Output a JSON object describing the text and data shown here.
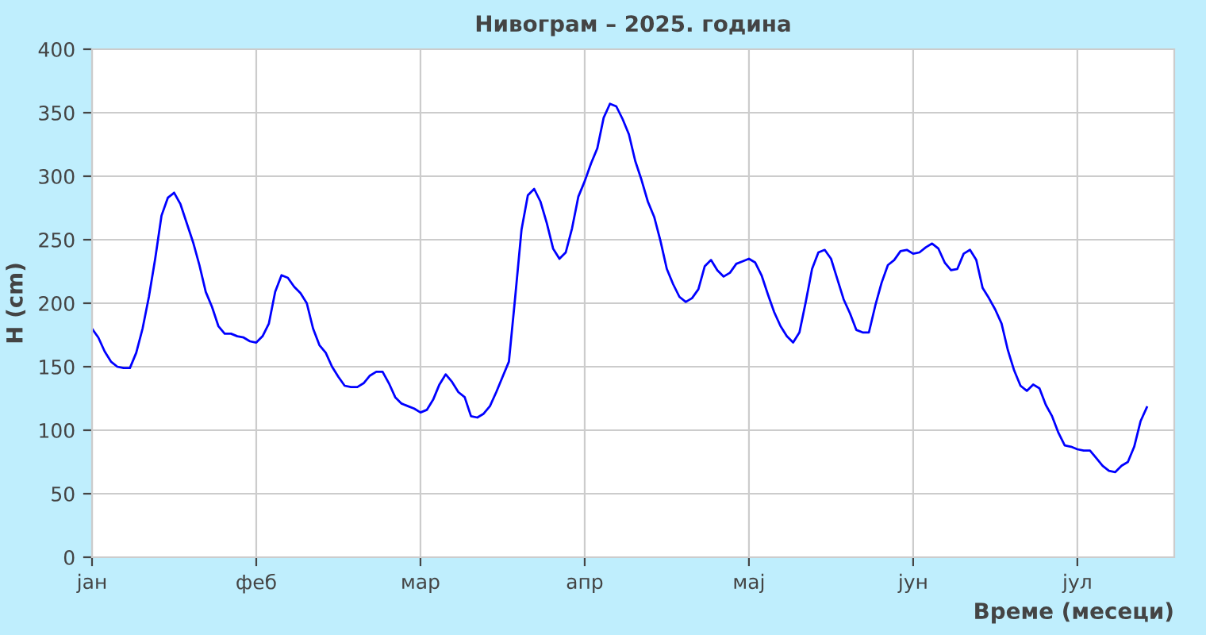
{
  "chart_data": {
    "type": "line",
    "title": "Нивограм – 2025. година",
    "xlabel": "Време (месеци)",
    "ylabel": "H (cm)",
    "categories": [
      "јан",
      null,
      null,
      null,
      null,
      null,
      null,
      null,
      null,
      null,
      null,
      null,
      null,
      null,
      null,
      null,
      null,
      null,
      null,
      null,
      null,
      null,
      null,
      null,
      null,
      null,
      "феб",
      null,
      null,
      null,
      null,
      null,
      null,
      null,
      null,
      null,
      null,
      null,
      null,
      null,
      null,
      null,
      null,
      null,
      null,
      null,
      null,
      null,
      null,
      null,
      null,
      null,
      "мар",
      null,
      null,
      null,
      null,
      null,
      null,
      null,
      null,
      null,
      null,
      null,
      null,
      null,
      null,
      null,
      null,
      null,
      null,
      null,
      null,
      null,
      null,
      null,
      null,
      null,
      "апр",
      null,
      null,
      null,
      null,
      null,
      null,
      null,
      null,
      null,
      null,
      null,
      null,
      null,
      null,
      null,
      null,
      null,
      null,
      null,
      null,
      null,
      null,
      null,
      null,
      null,
      "мај",
      null,
      null,
      null,
      null,
      null,
      null,
      null,
      null,
      null,
      null,
      null,
      null,
      null,
      null,
      null,
      null,
      null,
      null,
      null,
      null,
      null,
      null,
      null,
      null,
      null,
      "јун",
      null,
      null,
      null,
      null,
      null,
      null,
      null,
      null,
      null,
      null,
      null,
      null,
      null,
      null,
      null,
      null,
      null,
      null,
      null,
      null,
      null,
      null,
      null,
      null,
      null,
      "јул",
      null,
      null,
      null,
      null,
      null,
      null,
      null,
      null,
      null,
      null,
      null
    ],
    "series": [
      {
        "color": "#0000ff",
        "values": [
          180,
          173,
          162,
          154,
          150,
          149,
          149,
          161,
          180,
          205,
          235,
          269,
          283,
          287,
          278,
          263,
          248,
          230,
          209,
          197,
          182,
          176,
          176,
          174,
          173,
          170,
          169,
          174,
          184,
          209,
          222,
          220,
          213,
          208,
          200,
          180,
          167,
          161,
          150,
          142,
          135,
          134,
          134,
          137,
          143,
          146,
          146,
          137,
          126,
          121,
          119,
          117,
          114,
          116,
          124,
          136,
          144,
          138,
          130,
          126,
          111,
          110,
          113,
          119,
          130,
          142,
          154,
          205,
          258,
          285,
          290,
          280,
          263,
          243,
          235,
          240,
          259,
          284,
          296,
          310,
          322,
          346,
          357,
          355,
          345,
          333,
          312,
          297,
          280,
          268,
          249,
          227,
          215,
          205,
          201,
          204,
          211,
          229,
          234,
          226,
          221,
          224,
          231,
          233,
          235,
          232,
          222,
          207,
          193,
          182,
          174,
          169,
          177,
          201,
          227,
          240,
          242,
          235,
          219,
          203,
          192,
          179,
          177,
          177,
          198,
          216,
          230,
          234,
          241,
          242,
          239,
          240,
          244,
          247,
          243,
          232,
          226,
          227,
          239,
          242,
          234,
          212,
          204,
          195,
          184,
          163,
          147,
          135,
          131,
          136,
          133,
          120,
          111,
          98,
          88,
          87,
          85,
          84,
          84,
          78,
          72,
          68,
          67,
          72,
          75,
          87,
          107,
          118
        ]
      }
    ],
    "ylim": [
      0,
      400
    ],
    "yticks": [
      0,
      50,
      100,
      150,
      200,
      250,
      300,
      350,
      400
    ],
    "grid": true,
    "marker": "none",
    "line_style": "solid"
  }
}
